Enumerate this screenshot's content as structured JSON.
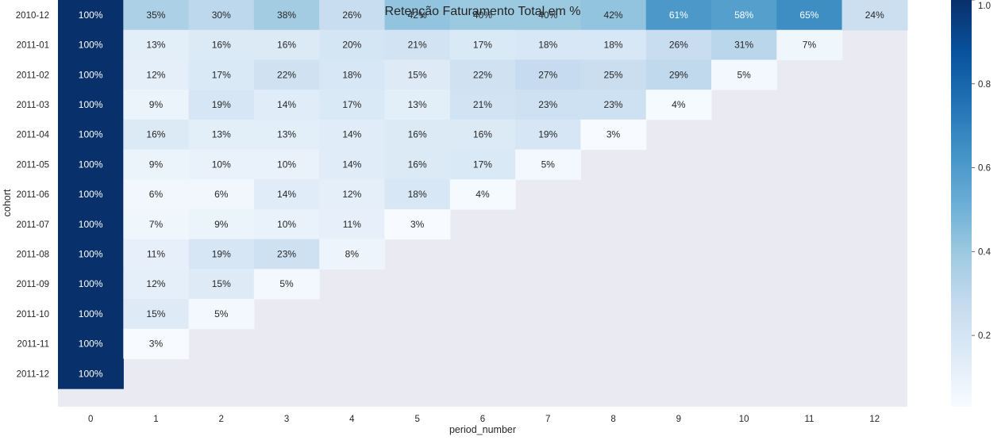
{
  "chart_data": {
    "type": "heatmap",
    "title": "Retenção Faturamento Total em %",
    "xlabel": "period_number",
    "ylabel": "cohort",
    "x_categories": [
      "0",
      "1",
      "2",
      "3",
      "4",
      "5",
      "6",
      "7",
      "8",
      "9",
      "10",
      "11",
      "12"
    ],
    "y_categories": [
      "2010-12",
      "2011-01",
      "2011-02",
      "2011-03",
      "2011-04",
      "2011-05",
      "2011-06",
      "2011-07",
      "2011-08",
      "2011-09",
      "2011-10",
      "2011-11",
      "2011-12"
    ],
    "values": [
      [
        1.0,
        0.35,
        0.3,
        0.38,
        0.26,
        0.42,
        0.4,
        0.4,
        0.42,
        0.61,
        0.58,
        0.65,
        0.24
      ],
      [
        1.0,
        0.13,
        0.16,
        0.16,
        0.2,
        0.21,
        0.17,
        0.18,
        0.18,
        0.26,
        0.31,
        0.07,
        null
      ],
      [
        1.0,
        0.12,
        0.17,
        0.22,
        0.18,
        0.15,
        0.22,
        0.27,
        0.25,
        0.29,
        0.05,
        null,
        null
      ],
      [
        1.0,
        0.09,
        0.19,
        0.14,
        0.17,
        0.13,
        0.21,
        0.23,
        0.23,
        0.04,
        null,
        null,
        null
      ],
      [
        1.0,
        0.16,
        0.13,
        0.13,
        0.14,
        0.16,
        0.16,
        0.19,
        0.03,
        null,
        null,
        null,
        null
      ],
      [
        1.0,
        0.09,
        0.1,
        0.1,
        0.14,
        0.16,
        0.17,
        0.05,
        null,
        null,
        null,
        null,
        null
      ],
      [
        1.0,
        0.06,
        0.06,
        0.14,
        0.12,
        0.18,
        0.04,
        null,
        null,
        null,
        null,
        null,
        null
      ],
      [
        1.0,
        0.07,
        0.09,
        0.1,
        0.11,
        0.03,
        null,
        null,
        null,
        null,
        null,
        null,
        null
      ],
      [
        1.0,
        0.11,
        0.19,
        0.23,
        0.08,
        null,
        null,
        null,
        null,
        null,
        null,
        null,
        null
      ],
      [
        1.0,
        0.12,
        0.15,
        0.05,
        null,
        null,
        null,
        null,
        null,
        null,
        null,
        null,
        null
      ],
      [
        1.0,
        0.15,
        0.05,
        null,
        null,
        null,
        null,
        null,
        null,
        null,
        null,
        null,
        null
      ],
      [
        1.0,
        0.03,
        null,
        null,
        null,
        null,
        null,
        null,
        null,
        null,
        null,
        null,
        null
      ],
      [
        1.0,
        null,
        null,
        null,
        null,
        null,
        null,
        null,
        null,
        null,
        null,
        null,
        null
      ]
    ],
    "cell_labels": [
      [
        "100%",
        "35%",
        "30%",
        "38%",
        "26%",
        "42%",
        "40%",
        "40%",
        "42%",
        "61%",
        "58%",
        "65%",
        "24%"
      ],
      [
        "100%",
        "13%",
        "16%",
        "16%",
        "20%",
        "21%",
        "17%",
        "18%",
        "18%",
        "26%",
        "31%",
        "7%",
        ""
      ],
      [
        "100%",
        "12%",
        "17%",
        "22%",
        "18%",
        "15%",
        "22%",
        "27%",
        "25%",
        "29%",
        "5%",
        "",
        ""
      ],
      [
        "100%",
        "9%",
        "19%",
        "14%",
        "17%",
        "13%",
        "21%",
        "23%",
        "23%",
        "4%",
        "",
        "",
        ""
      ],
      [
        "100%",
        "16%",
        "13%",
        "13%",
        "14%",
        "16%",
        "16%",
        "19%",
        "3%",
        "",
        "",
        "",
        ""
      ],
      [
        "100%",
        "9%",
        "10%",
        "10%",
        "14%",
        "16%",
        "17%",
        "5%",
        "",
        "",
        "",
        "",
        ""
      ],
      [
        "100%",
        "6%",
        "6%",
        "14%",
        "12%",
        "18%",
        "4%",
        "",
        "",
        "",
        "",
        "",
        ""
      ],
      [
        "100%",
        "7%",
        "9%",
        "10%",
        "11%",
        "3%",
        "",
        "",
        "",
        "",
        "",
        "",
        ""
      ],
      [
        "100%",
        "11%",
        "19%",
        "23%",
        "8%",
        "",
        "",
        "",
        "",
        "",
        "",
        "",
        ""
      ],
      [
        "100%",
        "12%",
        "15%",
        "5%",
        "",
        "",
        "",
        "",
        "",
        "",
        "",
        "",
        ""
      ],
      [
        "100%",
        "15%",
        "5%",
        "",
        "",
        "",
        "",
        "",
        "",
        "",
        "",
        "",
        ""
      ],
      [
        "100%",
        "3%",
        "",
        "",
        "",
        "",
        "",
        "",
        "",
        "",
        "",
        "",
        ""
      ],
      [
        "100%",
        "",
        "",
        "",
        "",
        "",
        "",
        "",
        "",
        "",
        "",
        "",
        ""
      ]
    ],
    "colormap": "Blues",
    "colorbar": {
      "min": 0.03,
      "max": 1.0,
      "ticks": [
        0.2,
        0.4,
        0.6,
        0.8,
        1.0
      ],
      "tick_labels": [
        "0.2",
        "0.4",
        "0.6",
        "0.8",
        "1.0"
      ]
    },
    "background_color": "#eaeaf2",
    "grid": false,
    "legend": "right (colorbar)"
  }
}
